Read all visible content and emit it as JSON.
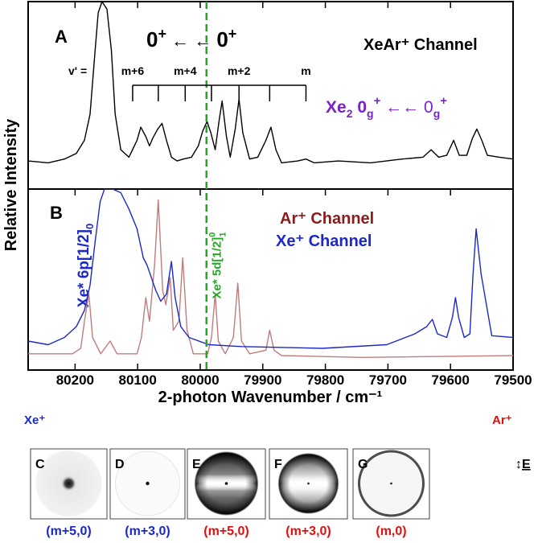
{
  "chart_data": {
    "type": "line",
    "x_label": "2-photon Wavenumber / cm⁻¹",
    "y_label": "Relative Intensity",
    "xlim": [
      80275,
      79500
    ],
    "xticks": [
      80200,
      80100,
      80000,
      79900,
      79800,
      79700,
      79600,
      79500
    ],
    "panels": [
      {
        "label": "A",
        "ylim": [
          0,
          1
        ],
        "series": [
          {
            "name": "XeAr⁺ Channel",
            "color": "#000000",
            "x": [
              80275,
              80243,
              80217,
              80198,
              80185,
              80176,
              80168,
              80163,
              80157,
              80149,
              80142,
              80136,
              80127,
              80114,
              80101,
              80095,
              80087,
              80081,
              80076,
              80068,
              80061,
              80054,
              80046,
              80037,
              80027,
              80014,
              80003,
              79996,
              79989,
              79983,
              79976,
              79970,
              79965,
              79958,
              79952,
              79944,
              79938,
              79932,
              79921,
              79908,
              79895,
              79887,
              79879,
              79870,
              79844,
              79831,
              79818,
              79779,
              79728,
              79677,
              79644,
              79631,
              79619,
              79606,
              79595,
              79586,
              79574,
              79565,
              79558,
              79550,
              79541,
              79522,
              79500
            ],
            "values": [
              0.15,
              0.14,
              0.16,
              0.19,
              0.26,
              0.4,
              0.74,
              0.94,
              1.0,
              0.96,
              0.74,
              0.4,
              0.21,
              0.17,
              0.26,
              0.33,
              0.28,
              0.23,
              0.27,
              0.32,
              0.35,
              0.26,
              0.17,
              0.15,
              0.16,
              0.17,
              0.23,
              0.31,
              0.36,
              0.3,
              0.21,
              0.36,
              0.47,
              0.28,
              0.17,
              0.32,
              0.48,
              0.3,
              0.16,
              0.17,
              0.26,
              0.33,
              0.21,
              0.14,
              0.15,
              0.16,
              0.14,
              0.15,
              0.14,
              0.16,
              0.17,
              0.21,
              0.17,
              0.18,
              0.26,
              0.18,
              0.18,
              0.27,
              0.32,
              0.26,
              0.18,
              0.17,
              0.16
            ]
          }
        ]
      },
      {
        "label": "B",
        "ylim": [
          0,
          1
        ],
        "series": [
          {
            "name": "Ar⁺ Channel",
            "color": "#c07c7c",
            "x": [
              80275,
              80204,
              80191,
              80185,
              80178,
              80172,
              80159,
              80144,
              80133,
              80101,
              80094,
              80087,
              80081,
              80073,
              80067,
              80060,
              80055,
              80048,
              80043,
              80034,
              80028,
              80021,
              80011,
              79988,
              79982,
              79976,
              79971,
              79960,
              79947,
              79940,
              79934,
              79921,
              79895,
              79889,
              79882,
              79870,
              79741,
              79500
            ],
            "values": [
              0.09,
              0.09,
              0.12,
              0.27,
              0.42,
              0.18,
              0.09,
              0.16,
              0.09,
              0.09,
              0.18,
              0.4,
              0.27,
              0.58,
              0.94,
              0.44,
              0.36,
              0.51,
              0.22,
              0.27,
              0.62,
              0.22,
              0.09,
              0.09,
              0.18,
              0.42,
              0.16,
              0.09,
              0.18,
              0.48,
              0.16,
              0.09,
              0.11,
              0.22,
              0.11,
              0.08,
              0.07,
              0.08
            ]
          },
          {
            "name": "Xe⁺ Channel",
            "color": "#1c28c8",
            "x": [
              80275,
              80243,
              80217,
              80198,
              80185,
              80176,
              80168,
              80160,
              80153,
              80140,
              80127,
              80114,
              80101,
              80091,
              80085,
              80078,
              80071,
              80063,
              80054,
              80046,
              80040,
              80031,
              80018,
              79986,
              79934,
              79805,
              79702,
              79657,
              79638,
              79629,
              79621,
              79606,
              79597,
              79592,
              79587,
              79578,
              79569,
              79564,
              79559,
              79551,
              79534,
              79500
            ],
            "values": [
              0.16,
              0.14,
              0.18,
              0.24,
              0.33,
              0.47,
              0.71,
              0.93,
              1.0,
              1.0,
              0.98,
              0.89,
              0.78,
              0.62,
              0.58,
              0.51,
              0.44,
              0.38,
              0.42,
              0.6,
              0.4,
              0.24,
              0.18,
              0.14,
              0.13,
              0.12,
              0.14,
              0.2,
              0.24,
              0.28,
              0.2,
              0.18,
              0.29,
              0.4,
              0.29,
              0.18,
              0.2,
              0.53,
              0.78,
              0.53,
              0.19,
              0.18
            ]
          }
        ]
      }
    ],
    "reference_line": {
      "x": 79990,
      "color": "#22aa22",
      "label": [
        "Xe* 5d[1/2]",
        "0",
        "1"
      ]
    },
    "progression": {
      "label": "v' =",
      "x": [
        80108,
        80067,
        80024,
        79982,
        79938,
        79889,
        79831
      ],
      "labels": [
        "m+6",
        null,
        "m+4",
        null,
        "m+2",
        null,
        "m"
      ]
    },
    "annotations": {
      "transition": [
        "0",
        "+",
        " ← ← ",
        "0",
        "+"
      ],
      "xe2": [
        "Xe",
        "2",
        " 0",
        "g",
        "+",
        " ←← 0",
        "g",
        "+"
      ],
      "xe6p": [
        "Xe* 6p[1/2]",
        "0"
      ]
    }
  },
  "images": {
    "channels": [
      "Xe⁺",
      "Ar⁺"
    ],
    "polarization": "E",
    "panels": [
      {
        "letter": "C",
        "caption": "(m+5,0)"
      },
      {
        "letter": "D",
        "caption": "(m+3,0)"
      },
      {
        "letter": "E",
        "caption": "(m+5,0)"
      },
      {
        "letter": "F",
        "caption": "(m+3,0)"
      },
      {
        "letter": "G",
        "caption": "(m,0)"
      }
    ]
  }
}
